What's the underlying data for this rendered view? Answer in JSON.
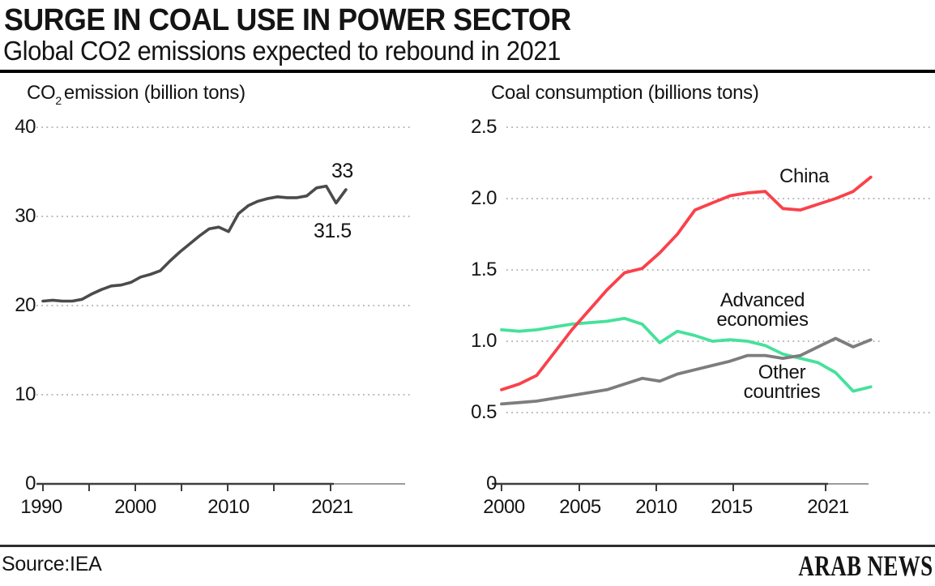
{
  "header": {
    "title": "SURGE IN COAL USE IN POWER SECTOR",
    "subtitle": "Global CO2 emissions expected to rebound in 2021"
  },
  "footer": {
    "source": "Source:IEA",
    "brand": "ARAB NEWS"
  },
  "colors": {
    "co2": "#4b4b4b",
    "china": "#fa414b",
    "advanced": "#46e19b",
    "other": "#7d7d7d",
    "grid": "#aeaeae",
    "axis": "#3d3d3d",
    "axis_ext": "#9b9b9b",
    "text": "#141414"
  },
  "chart_data": [
    {
      "type": "line",
      "title": "CO2 emission (billion tons)",
      "title_parts": {
        "prefix": "CO",
        "sub": "2",
        "rest": "emission (billion tons)"
      },
      "x": [
        1990,
        1991,
        1992,
        1993,
        1994,
        1995,
        1996,
        1997,
        1998,
        1999,
        2000,
        2001,
        2002,
        2003,
        2004,
        2005,
        2006,
        2007,
        2008,
        2009,
        2010,
        2011,
        2012,
        2013,
        2014,
        2015,
        2016,
        2017,
        2018,
        2019,
        2020,
        2021
      ],
      "series": [
        {
          "name": "Global CO2 emissions",
          "color_key": "co2",
          "values": [
            20.5,
            20.6,
            20.5,
            20.5,
            20.7,
            21.3,
            21.8,
            22.2,
            22.3,
            22.6,
            23.2,
            23.5,
            23.9,
            25.0,
            26.0,
            26.9,
            27.8,
            28.6,
            28.8,
            28.3,
            30.3,
            31.2,
            31.7,
            32.0,
            32.2,
            32.1,
            32.1,
            32.3,
            33.2,
            33.4,
            31.5,
            33.0
          ]
        }
      ],
      "ylim": [
        0,
        40
      ],
      "ytick_labels": [
        "40",
        "30",
        "20",
        "10",
        "0"
      ],
      "xtick_labels": [
        "1990",
        "2000",
        "2010",
        "2021"
      ],
      "grid": "dotted",
      "annotations": [
        {
          "text": "33",
          "year": 2021
        },
        {
          "text": "31.5",
          "year": 2020
        }
      ]
    },
    {
      "type": "line",
      "title": "Coal consumption (billions tons)",
      "x": [
        2000,
        2001,
        2002,
        2003,
        2004,
        2005,
        2006,
        2007,
        2008,
        2009,
        2010,
        2011,
        2012,
        2013,
        2014,
        2015,
        2016,
        2017,
        2018,
        2019,
        2020,
        2021
      ],
      "series": [
        {
          "name": "China",
          "label": "China",
          "color_key": "china",
          "values": [
            0.66,
            0.7,
            0.76,
            0.92,
            1.08,
            1.22,
            1.36,
            1.48,
            1.51,
            1.62,
            1.75,
            1.92,
            1.97,
            2.02,
            2.04,
            2.05,
            1.93,
            1.92,
            1.96,
            2.0,
            2.05,
            2.15
          ]
        },
        {
          "name": "Advanced economies",
          "label": "Advanced economies",
          "color_key": "advanced",
          "values": [
            1.08,
            1.07,
            1.08,
            1.1,
            1.12,
            1.13,
            1.14,
            1.16,
            1.12,
            0.99,
            1.07,
            1.04,
            1.0,
            1.01,
            1.0,
            0.97,
            0.91,
            0.88,
            0.85,
            0.78,
            0.65,
            0.68
          ]
        },
        {
          "name": "Other countries",
          "label": "Other countries",
          "color_key": "other",
          "values": [
            0.56,
            0.57,
            0.58,
            0.6,
            0.62,
            0.64,
            0.66,
            0.7,
            0.74,
            0.72,
            0.77,
            0.8,
            0.83,
            0.86,
            0.9,
            0.9,
            0.88,
            0.9,
            0.96,
            1.02,
            0.96,
            1.01
          ]
        }
      ],
      "ylim": [
        0,
        2.5
      ],
      "ytick_labels": [
        "2.5",
        "2.0",
        "1.5",
        "1.0",
        "0.5",
        "0"
      ],
      "xtick_labels": [
        "2000",
        "2005",
        "2010",
        "2015",
        "2021"
      ],
      "grid": "dotted"
    }
  ]
}
